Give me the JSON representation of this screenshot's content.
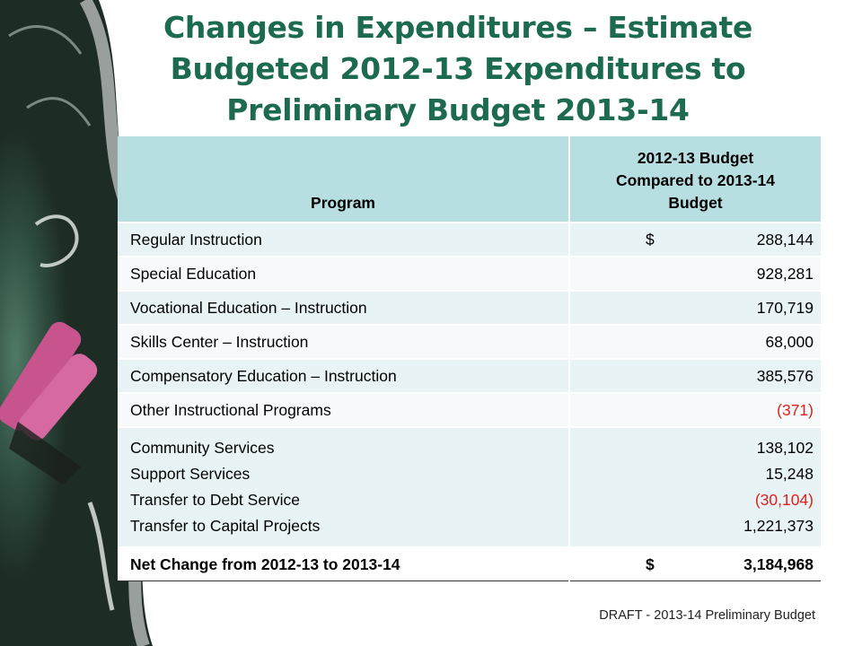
{
  "title_lines": [
    "Changes in Expenditures – Estimate",
    "Budgeted 2012-13 Expenditures to",
    "Preliminary Budget 2013-14"
  ],
  "table": {
    "header": {
      "program": "Program",
      "comparison": "2012-13 Budget Compared to 2013-14 Budget"
    },
    "rows": [
      {
        "program": "Regular Instruction",
        "dollar": "$",
        "value": "288,144",
        "negative": false
      },
      {
        "program": "Special Education",
        "dollar": "",
        "value": "928,281",
        "negative": false
      },
      {
        "program": "Vocational Education – Instruction",
        "dollar": "",
        "value": "170,719",
        "negative": false
      },
      {
        "program": "Skills Center – Instruction",
        "dollar": "",
        "value": "68,000",
        "negative": false
      },
      {
        "program": "Compensatory Education – Instruction",
        "dollar": "",
        "value": "385,576",
        "negative": false
      },
      {
        "program": "Other Instructional Programs",
        "dollar": "",
        "value": "(371)",
        "negative": true
      }
    ],
    "multi_row": [
      {
        "program": "Community Services",
        "value": "138,102",
        "negative": false
      },
      {
        "program": "Support Services",
        "value": "15,248",
        "negative": false
      },
      {
        "program": "Transfer to Debt Service",
        "value": "(30,104)",
        "negative": true
      },
      {
        "program": "Transfer to Capital Projects",
        "value": "1,221,373",
        "negative": false
      }
    ],
    "total": {
      "label": "Net Change from 2012-13 to 2013-14",
      "dollar": "$",
      "value": "3,184,968"
    }
  },
  "footer": "DRAFT - 2013-14 Preliminary Budget",
  "colors": {
    "title": "#1c6a4f",
    "header_bg": "#b7dfe2",
    "negative": "#e0201a",
    "chalkboard": "#2f4a3e"
  }
}
